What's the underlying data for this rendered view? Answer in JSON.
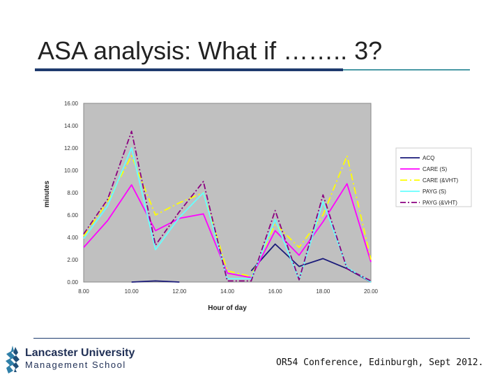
{
  "slide": {
    "title": "ASA analysis: What if …….. 3?",
    "footer": "OR54 Conference, Edinburgh, Sept 2012.",
    "logo_line1": "Lancaster University",
    "logo_line2": "Management School"
  },
  "colors": {
    "plot_bg": "#c0c0c0",
    "accent_teal": "#4a9aa5",
    "accent_navy": "#1f3b6e"
  },
  "chart_data": {
    "type": "line",
    "xlabel": "Hour of day",
    "ylabel": "minutes",
    "xlim": [
      8,
      20
    ],
    "ylim": [
      0,
      16
    ],
    "grid": false,
    "legend_position": "right",
    "x_ticks": [
      "8.00",
      "10.00",
      "12.00",
      "14.00",
      "16.00",
      "18.00",
      "20.00"
    ],
    "y_ticks": [
      "0.00",
      "2.00",
      "4.00",
      "6.00",
      "8.00",
      "10.00",
      "12.00",
      "14.00",
      "16.00"
    ],
    "x": [
      8,
      9,
      10,
      11,
      12,
      13,
      14,
      15,
      16,
      17,
      18,
      19,
      20
    ],
    "series": [
      {
        "name": "ACQ",
        "color": "#1a1a7a",
        "dash": "",
        "values": [
          null,
          null,
          0.0,
          0.1,
          0.0,
          null,
          null,
          1.0,
          3.4,
          1.4,
          2.1,
          1.2,
          0.0
        ]
      },
      {
        "name": "CARE (S)",
        "color": "#ff00ff",
        "dash": "",
        "values": [
          3.1,
          5.5,
          8.7,
          4.6,
          5.7,
          6.1,
          0.8,
          0.4,
          4.6,
          2.4,
          5.4,
          8.8,
          1.8
        ]
      },
      {
        "name": "CARE (&VHT)",
        "color": "#ffff00",
        "dash": "10,4,2,4",
        "values": [
          4.1,
          7.2,
          11.3,
          6.0,
          7.1,
          8.0,
          1.0,
          0.5,
          5.2,
          3.1,
          6.0,
          11.3,
          2.0
        ]
      },
      {
        "name": "PAYG (S)",
        "color": "#66ffff",
        "dash": "",
        "values": [
          3.9,
          6.8,
          12.0,
          2.9,
          5.8,
          8.0,
          0.3,
          0.3,
          5.6,
          0.2,
          7.2,
          1.3,
          0.0
        ]
      },
      {
        "name": "PAYG (&VHT)",
        "color": "#8b0080",
        "dash": "8,3,2,3",
        "values": [
          4.3,
          7.4,
          13.5,
          3.3,
          6.3,
          9.0,
          0.1,
          0.1,
          6.4,
          0.2,
          7.8,
          1.2,
          0.1
        ]
      }
    ]
  }
}
